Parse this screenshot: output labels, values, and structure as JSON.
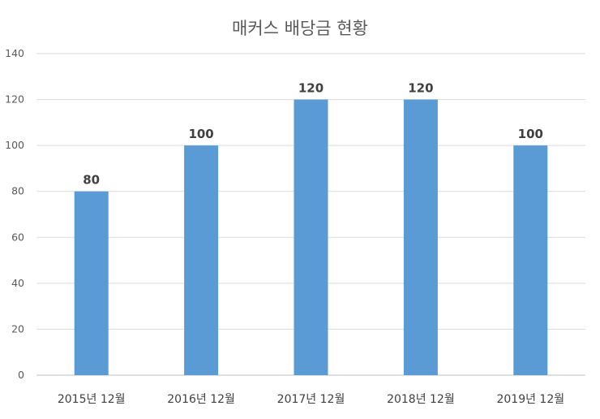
{
  "chart_data": {
    "type": "bar",
    "title": "매커스 배당금 현황",
    "categories": [
      "2015년 12월",
      "2016년 12월",
      "2017년 12월",
      "2018년 12월",
      "2019년 12월"
    ],
    "values": [
      80,
      100,
      120,
      120,
      100
    ],
    "data_labels": [
      "80",
      "100",
      "120",
      "120",
      "100"
    ],
    "ylim": [
      0,
      140
    ],
    "y_ticks": [
      "0",
      "20",
      "40",
      "60",
      "80",
      "100",
      "120",
      "140"
    ],
    "bar_color": "#5B9BD5",
    "grid": true,
    "legend": "none"
  }
}
